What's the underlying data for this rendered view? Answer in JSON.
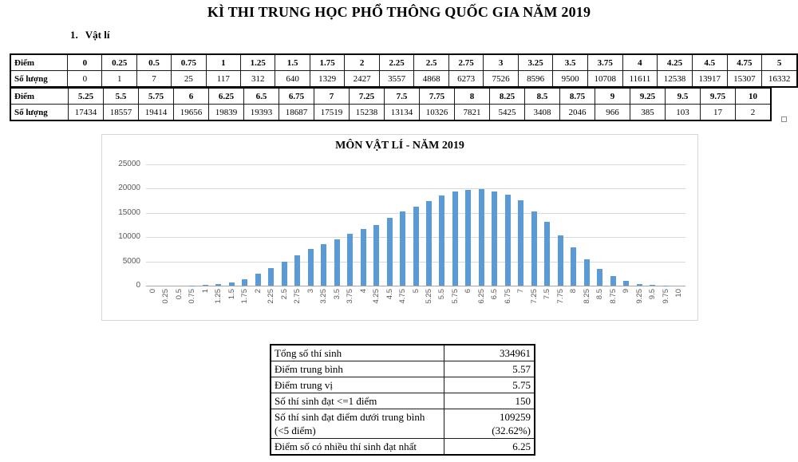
{
  "page": {
    "title": "KÌ THI TRUNG HỌC PHỔ THÔNG QUỐC GIA NĂM 2019"
  },
  "section": {
    "number": "1.",
    "title": "Vật lí"
  },
  "score_table": {
    "row_headers": {
      "score": "Điểm",
      "count": "Số lượng"
    },
    "part1": {
      "scores": [
        "0",
        "0.25",
        "0.5",
        "0.75",
        "1",
        "1.25",
        "1.5",
        "1.75",
        "2",
        "2.25",
        "2.5",
        "2.75",
        "3",
        "3.25",
        "3.5",
        "3.75",
        "4",
        "4.25",
        "4.5",
        "4.75",
        "5"
      ],
      "counts": [
        "0",
        "1",
        "7",
        "25",
        "117",
        "312",
        "640",
        "1329",
        "2427",
        "3557",
        "4868",
        "6273",
        "7526",
        "8596",
        "9500",
        "10708",
        "11611",
        "12538",
        "13917",
        "15307",
        "16332"
      ]
    },
    "part2": {
      "scores": [
        "5.25",
        "5.5",
        "5.75",
        "6",
        "6.25",
        "6.5",
        "6.75",
        "7",
        "7.25",
        "7.5",
        "7.75",
        "8",
        "8.25",
        "8.5",
        "8.75",
        "9",
        "9.25",
        "9.5",
        "9.75",
        "10"
      ],
      "counts": [
        "17434",
        "18557",
        "19414",
        "19656",
        "19839",
        "19393",
        "18687",
        "17519",
        "15238",
        "13134",
        "10326",
        "7821",
        "5425",
        "3408",
        "2046",
        "966",
        "385",
        "103",
        "17",
        "2"
      ]
    }
  },
  "chart_data": {
    "type": "bar",
    "title": "MÔN VẬT LÍ - NĂM 2019",
    "categories": [
      "0",
      "0.25",
      "0.5",
      "0.75",
      "1",
      "1.25",
      "1.5",
      "1.75",
      "2",
      "2.25",
      "2.5",
      "2.75",
      "3",
      "3.25",
      "3.5",
      "3.75",
      "4",
      "4.25",
      "4.5",
      "4.75",
      "5",
      "5.25",
      "5.5",
      "5.75",
      "6",
      "6.25",
      "6.5",
      "6.75",
      "7",
      "7.25",
      "7.5",
      "7.75",
      "8",
      "8.25",
      "8.5",
      "8.75",
      "9",
      "9.25",
      "9.5",
      "9.75",
      "10"
    ],
    "values": [
      0,
      1,
      7,
      25,
      117,
      312,
      640,
      1329,
      2427,
      3557,
      4868,
      6273,
      7526,
      8596,
      9500,
      10708,
      11611,
      12538,
      13917,
      15307,
      16332,
      17434,
      18557,
      19414,
      19656,
      19839,
      19393,
      18687,
      17519,
      15238,
      13134,
      10326,
      7821,
      5425,
      3408,
      2046,
      966,
      385,
      103,
      17,
      2
    ],
    "xlabel": "",
    "ylabel": "",
    "ylim": [
      0,
      25000
    ],
    "yticks": [
      0,
      5000,
      10000,
      15000,
      20000,
      25000
    ],
    "grid": true,
    "legend": false,
    "bar_color": "#5b9bd5"
  },
  "summary_table": {
    "rows": [
      {
        "label": "Tổng số thí sinh",
        "value": "334961"
      },
      {
        "label": "Điểm trung bình",
        "value": "5.57"
      },
      {
        "label": "Điểm trung vị",
        "value": "5.75"
      },
      {
        "label": "Số thí sinh đạt <=1 điểm",
        "value": "150"
      },
      {
        "label": "Số thí sinh đạt điểm dưới trung bình (<5 điểm)",
        "value": "109259\n(32.62%)"
      },
      {
        "label": "Điểm số có nhiều thí sinh đạt nhất",
        "value": "6.25"
      }
    ]
  }
}
